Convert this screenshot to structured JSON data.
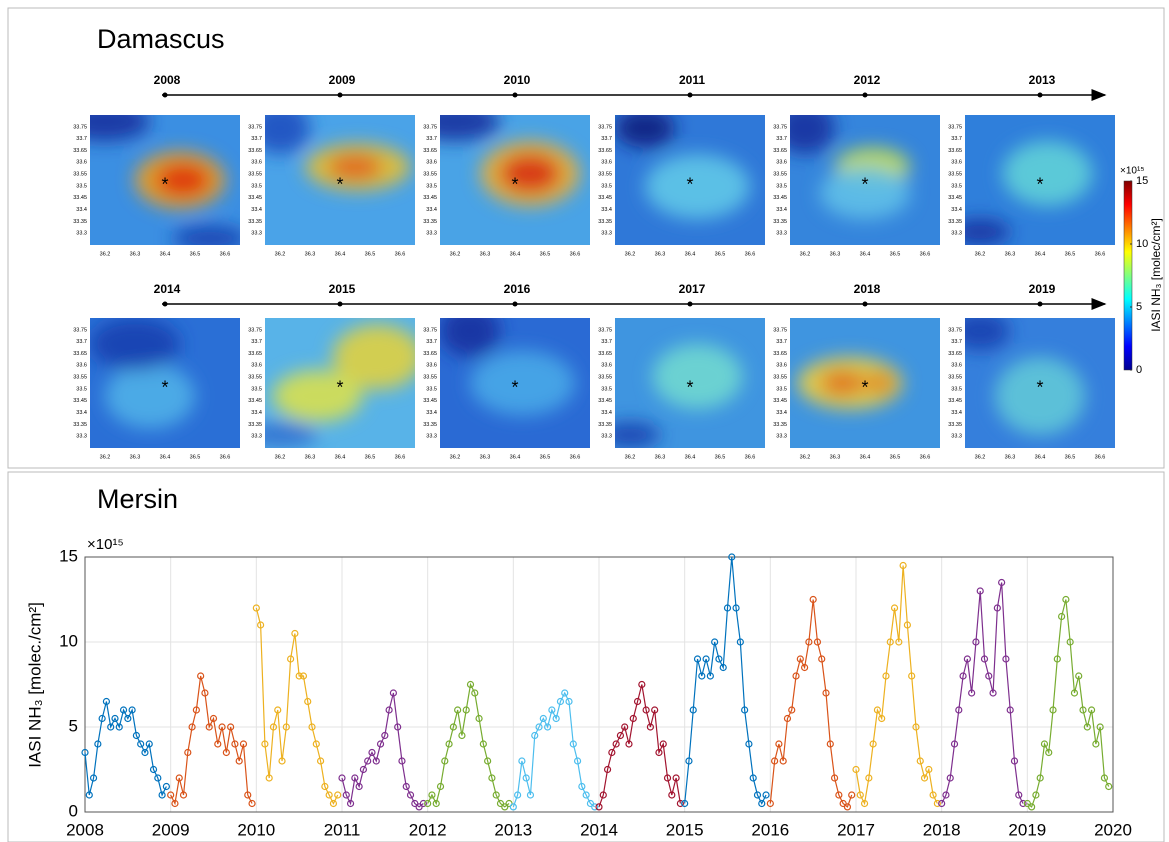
{
  "damascus": {
    "title": "Damascus",
    "years": [
      "2008",
      "2009",
      "2010",
      "2011",
      "2012",
      "2013",
      "2014",
      "2015",
      "2016",
      "2017",
      "2018",
      "2019"
    ],
    "map_xlim": [
      36.15,
      36.65
    ],
    "map_ylim": [
      33.25,
      33.8
    ],
    "map_xticks": [
      36.2,
      36.3,
      36.4,
      36.5,
      36.6
    ],
    "map_yticks": [
      33.3,
      33.35,
      33.4,
      33.45,
      33.5,
      33.55,
      33.6,
      33.65,
      33.7,
      33.75
    ],
    "colorbar": {
      "label": "IASI NH₃ [molec/cm²]",
      "multiplier": "×10¹⁵",
      "lim": [
        0,
        15
      ],
      "ticks": [
        0,
        5,
        10,
        15
      ]
    }
  },
  "chart_data": {
    "type": "line",
    "title": "Mersin",
    "ylabel": "IASI NH₃ [molec./cm²]",
    "multiplier": "×10¹⁵",
    "xlim": [
      2008,
      2020
    ],
    "xticks": [
      2008,
      2009,
      2010,
      2011,
      2012,
      2013,
      2014,
      2015,
      2016,
      2017,
      2018,
      2019,
      2020
    ],
    "ylim": [
      0,
      15
    ],
    "yticks": [
      0,
      5,
      10,
      15
    ],
    "grid": true,
    "series": [
      {
        "color": "#0072BD",
        "x": [
          2008,
          2008.05,
          2008.1,
          2008.15,
          2008.2,
          2008.25,
          2008.3,
          2008.35,
          2008.4,
          2008.45,
          2008.5,
          2008.55,
          2008.6,
          2008.65,
          2008.7,
          2008.75,
          2008.8,
          2008.85,
          2008.9,
          2008.95
        ],
        "values": [
          3.5,
          1,
          2,
          4,
          5.5,
          6.5,
          5,
          5.5,
          5,
          6,
          5.5,
          6,
          4.5,
          4,
          3.5,
          4,
          2.5,
          2,
          1,
          1.5
        ]
      },
      {
        "color": "#D95319",
        "x": [
          2009,
          2009.05,
          2009.1,
          2009.15,
          2009.2,
          2009.25,
          2009.3,
          2009.35,
          2009.4,
          2009.45,
          2009.5,
          2009.55,
          2009.6,
          2009.65,
          2009.7,
          2009.75,
          2009.8,
          2009.85,
          2009.9,
          2009.95
        ],
        "values": [
          1,
          0.5,
          2,
          1,
          3.5,
          5,
          6,
          8,
          7,
          5,
          5.5,
          4,
          5,
          3.5,
          5,
          4,
          3,
          4,
          1,
          0.5
        ]
      },
      {
        "color": "#EDB120",
        "x": [
          2010,
          2010.05,
          2010.1,
          2010.15,
          2010.2,
          2010.25,
          2010.3,
          2010.35,
          2010.4,
          2010.45,
          2010.5,
          2010.55,
          2010.6,
          2010.65,
          2010.7,
          2010.75,
          2010.8,
          2010.85,
          2010.9,
          2010.95
        ],
        "values": [
          12,
          11,
          4,
          2,
          5,
          6,
          3,
          5,
          9,
          10.5,
          8,
          8,
          6.5,
          5,
          4,
          3,
          1.5,
          1,
          0.5,
          1
        ]
      },
      {
        "color": "#7E2F8E",
        "x": [
          2011,
          2011.05,
          2011.1,
          2011.15,
          2011.2,
          2011.25,
          2011.3,
          2011.35,
          2011.4,
          2011.45,
          2011.5,
          2011.55,
          2011.6,
          2011.65,
          2011.7,
          2011.75,
          2011.8,
          2011.85,
          2011.9,
          2011.95
        ],
        "values": [
          2,
          1,
          0.5,
          2,
          1.5,
          2.5,
          3,
          3.5,
          3,
          4,
          4.5,
          6,
          7,
          5,
          3,
          1.5,
          1,
          0.5,
          0.3,
          0.5
        ]
      },
      {
        "color": "#77AC30",
        "x": [
          2012,
          2012.05,
          2012.1,
          2012.15,
          2012.2,
          2012.25,
          2012.3,
          2012.35,
          2012.4,
          2012.45,
          2012.5,
          2012.55,
          2012.6,
          2012.65,
          2012.7,
          2012.75,
          2012.8,
          2012.85,
          2012.9,
          2012.95
        ],
        "values": [
          0.5,
          1,
          0.5,
          1.5,
          3,
          4,
          5,
          6,
          4.5,
          6,
          7.5,
          7,
          5.5,
          4,
          3,
          2,
          1,
          0.5,
          0.3,
          0.5
        ]
      },
      {
        "color": "#4DBEEE",
        "x": [
          2013,
          2013.05,
          2013.1,
          2013.15,
          2013.2,
          2013.25,
          2013.3,
          2013.35,
          2013.4,
          2013.45,
          2013.5,
          2013.55,
          2013.6,
          2013.65,
          2013.7,
          2013.75,
          2013.8,
          2013.85,
          2013.9,
          2013.95
        ],
        "values": [
          0.3,
          1,
          3,
          2,
          1,
          4.5,
          5,
          5.5,
          5,
          6,
          5.5,
          6.5,
          7,
          6.5,
          4,
          3,
          1.5,
          1,
          0.5,
          0.3
        ]
      },
      {
        "color": "#A2142F",
        "x": [
          2014,
          2014.05,
          2014.1,
          2014.15,
          2014.2,
          2014.25,
          2014.3,
          2014.35,
          2014.4,
          2014.45,
          2014.5,
          2014.55,
          2014.6,
          2014.65,
          2014.7,
          2014.75,
          2014.8,
          2014.85,
          2014.9,
          2014.95
        ],
        "values": [
          0.3,
          1,
          2.5,
          3.5,
          4,
          4.5,
          5,
          4,
          5.5,
          6.5,
          7.5,
          6,
          5,
          6,
          3.5,
          4,
          2,
          1,
          2,
          0.5
        ]
      },
      {
        "color": "#0072BD",
        "x": [
          2015,
          2015.05,
          2015.1,
          2015.15,
          2015.2,
          2015.25,
          2015.3,
          2015.35,
          2015.4,
          2015.45,
          2015.5,
          2015.55,
          2015.6,
          2015.65,
          2015.7,
          2015.75,
          2015.8,
          2015.85,
          2015.9,
          2015.95
        ],
        "values": [
          0.5,
          3,
          6,
          9,
          8,
          9,
          8,
          10,
          9,
          8.5,
          12,
          15,
          12,
          10,
          6,
          4,
          2,
          1,
          0.5,
          1
        ]
      },
      {
        "color": "#D95319",
        "x": [
          2016,
          2016.05,
          2016.1,
          2016.15,
          2016.2,
          2016.25,
          2016.3,
          2016.35,
          2016.4,
          2016.45,
          2016.5,
          2016.55,
          2016.6,
          2016.65,
          2016.7,
          2016.75,
          2016.8,
          2016.85,
          2016.9,
          2016.95
        ],
        "values": [
          0.5,
          3,
          4,
          3,
          5.5,
          6,
          8,
          9,
          8.5,
          10,
          12.5,
          10,
          9,
          7,
          4,
          2,
          1,
          0.5,
          0.3,
          1
        ]
      },
      {
        "color": "#EDB120",
        "x": [
          2017,
          2017.05,
          2017.1,
          2017.15,
          2017.2,
          2017.25,
          2017.3,
          2017.35,
          2017.4,
          2017.45,
          2017.5,
          2017.55,
          2017.6,
          2017.65,
          2017.7,
          2017.75,
          2017.8,
          2017.85,
          2017.9,
          2017.95
        ],
        "values": [
          2.5,
          1,
          0.5,
          2,
          4,
          6,
          5.5,
          8,
          10,
          12,
          10,
          14.5,
          11,
          8,
          5,
          3,
          2,
          2.5,
          1,
          0.5
        ]
      },
      {
        "color": "#7E2F8E",
        "x": [
          2018,
          2018.05,
          2018.1,
          2018.15,
          2018.2,
          2018.25,
          2018.3,
          2018.35,
          2018.4,
          2018.45,
          2018.5,
          2018.55,
          2018.6,
          2018.65,
          2018.7,
          2018.75,
          2018.8,
          2018.85,
          2018.9,
          2018.95
        ],
        "values": [
          0.5,
          1,
          2,
          4,
          6,
          8,
          9,
          7,
          10,
          13,
          9,
          8,
          7,
          12,
          13.5,
          9,
          6,
          3,
          1,
          0.5
        ]
      },
      {
        "color": "#77AC30",
        "x": [
          2019,
          2019.05,
          2019.1,
          2019.15,
          2019.2,
          2019.25,
          2019.3,
          2019.35,
          2019.4,
          2019.45,
          2019.5,
          2019.55,
          2019.6,
          2019.65,
          2019.7,
          2019.75,
          2019.8,
          2019.85,
          2019.9,
          2019.95
        ],
        "values": [
          0.5,
          0.3,
          1,
          2,
          4,
          3.5,
          6,
          9,
          11.5,
          12.5,
          10,
          7,
          8,
          6,
          5,
          6,
          4,
          5,
          2,
          1.5
        ]
      }
    ]
  }
}
